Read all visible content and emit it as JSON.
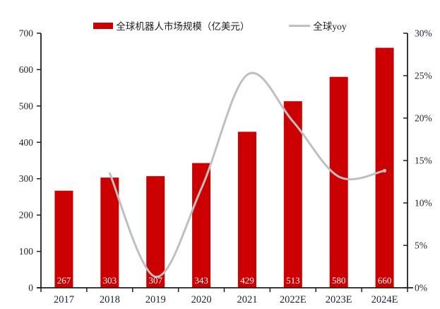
{
  "legend": {
    "bar_label": "全球机器人市场规模（亿美元）",
    "line_label": "全球yoy"
  },
  "chart_data": {
    "type": "combo",
    "categories": [
      "2017",
      "2018",
      "2019",
      "2020",
      "2021",
      "2022E",
      "2023E",
      "2024E"
    ],
    "series": [
      {
        "name": "全球机器人市场规模（亿美元）",
        "type": "bar",
        "axis": "left",
        "color": "#CC0000",
        "values": [
          267,
          303,
          307,
          343,
          429,
          513,
          580,
          660
        ],
        "value_labels": [
          "267",
          "303",
          "307",
          "343",
          "429",
          "513",
          "580",
          "660"
        ],
        "value_label_color": "#FFFFFF"
      },
      {
        "name": "全球yoy",
        "type": "line",
        "axis": "right",
        "color": "#BFBFBF",
        "smooth": true,
        "values": [
          null,
          13.5,
          1.3,
          11.7,
          25.1,
          19.6,
          13.1,
          13.8
        ]
      }
    ],
    "left_axis": {
      "min": 0,
      "max": 700,
      "step": 100,
      "tick_labels": [
        "0",
        "100",
        "200",
        "300",
        "400",
        "500",
        "600",
        "700"
      ]
    },
    "right_axis": {
      "min": 0,
      "max": 30,
      "step": 5,
      "tick_labels": [
        "0%",
        "5%",
        "10%",
        "15%",
        "20%",
        "25%",
        "30%"
      ]
    },
    "grid": false,
    "legend_position": "top",
    "title": "",
    "xlabel": "",
    "ylabel": ""
  },
  "colors": {
    "bar": "#CC0000",
    "line": "#BFBFBF",
    "axis": "#1f1f1f",
    "tick_text": "#1c2030",
    "bar_value_text": "#FFFFFF",
    "background": "#FFFFFF"
  }
}
